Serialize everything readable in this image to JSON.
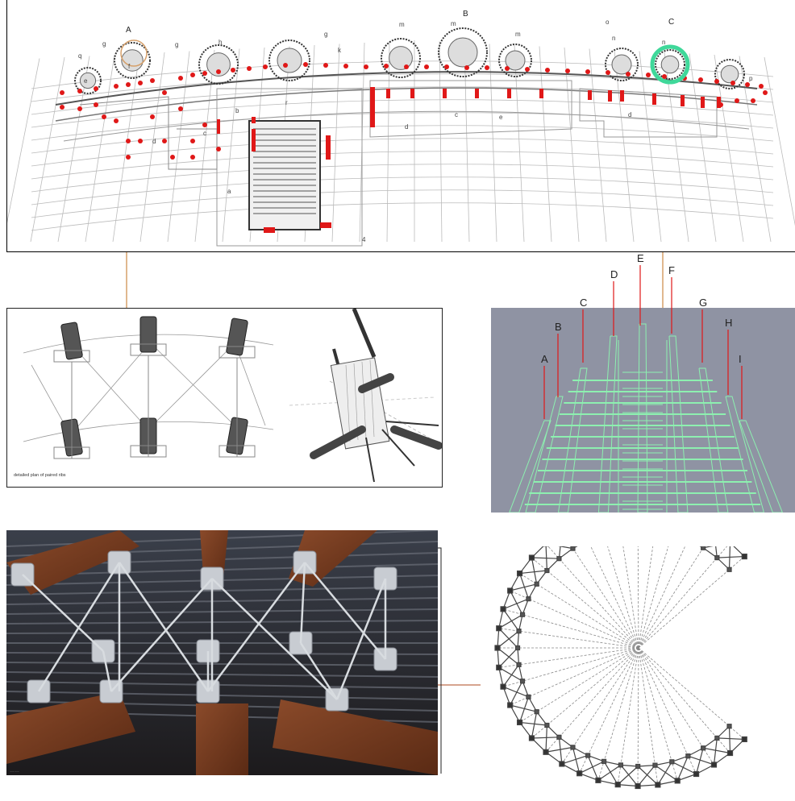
{
  "colors": {
    "accent_red": "#e01818",
    "connector_orange": "#d6a06a",
    "wireframe_green": "#8df0b0",
    "highlight_green": "#3fd89a",
    "wire_bg": "#8f93a3"
  },
  "plan": {
    "zone_labels": [
      "A",
      "B",
      "C"
    ],
    "room_labels": [
      "e",
      "f",
      "g",
      "g",
      "h",
      "g",
      "m",
      "m",
      "m",
      "n",
      "n",
      "k",
      "o",
      "p",
      "q",
      "d",
      "c",
      "b",
      "a",
      "d",
      "c",
      "r",
      "d",
      "e",
      "4"
    ]
  },
  "detail": {
    "caption": "detailed plan of paired ribs"
  },
  "wire": {
    "rib_labels": [
      "A",
      "B",
      "C",
      "D",
      "E",
      "F",
      "G",
      "H",
      "I"
    ]
  },
  "photo": {
    "footer_text": "……"
  }
}
